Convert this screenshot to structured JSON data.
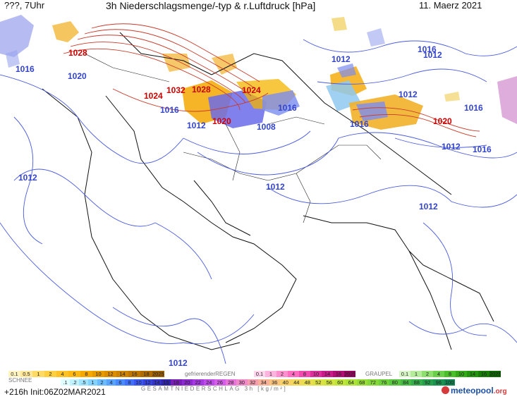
{
  "header": {
    "left": "???, 7Uhr",
    "title": "3h Niederschlagsmenge/-typ & r.Luftdruck [hPa]",
    "date": "11. Maerz 2021"
  },
  "isobars": [
    {
      "text": "1028",
      "color": "#cc0000"
    },
    {
      "text": "1020",
      "color": "#3344cc"
    },
    {
      "text": "1024",
      "color": "#cc0000"
    },
    {
      "text": "1032",
      "color": "#cc0000"
    },
    {
      "text": "1028",
      "color": "#cc0000"
    },
    {
      "text": "1024",
      "color": "#cc0000"
    },
    {
      "text": "1016",
      "color": "#3344cc"
    },
    {
      "text": "1012",
      "color": "#3344cc"
    },
    {
      "text": "1020",
      "color": "#cc0000"
    },
    {
      "text": "1016",
      "color": "#3344cc"
    },
    {
      "text": "1008",
      "color": "#3344cc"
    },
    {
      "text": "1016",
      "color": "#3344cc"
    },
    {
      "text": "1012",
      "color": "#3344cc"
    },
    {
      "text": "1012",
      "color": "#3344cc"
    },
    {
      "text": "1012",
      "color": "#3344cc"
    },
    {
      "text": "1016",
      "color": "#3344cc"
    },
    {
      "text": "1016",
      "color": "#3344cc"
    },
    {
      "text": "1020",
      "color": "#cc0000"
    },
    {
      "text": "1012",
      "color": "#3344cc"
    },
    {
      "text": "1016",
      "color": "#3344cc"
    },
    {
      "text": "1012",
      "color": "#3344cc"
    },
    {
      "text": "1012",
      "color": "#3344cc"
    },
    {
      "text": "1012",
      "color": "#3344cc"
    },
    {
      "text": "1012",
      "color": "#3344cc"
    },
    {
      "text": "1016",
      "color": "#3344cc"
    }
  ],
  "legend": {
    "rain": {
      "values": [
        "0.1",
        "0.5",
        "1",
        "2",
        "4",
        "6",
        "8",
        "10",
        "12",
        "14",
        "16",
        "18",
        "2025+"
      ],
      "colors": [
        "#fff3c0",
        "#ffe799",
        "#ffdb66",
        "#ffcf40",
        "#ffc226",
        "#fdb814",
        "#f5a800",
        "#e89b00",
        "#db8f00",
        "#cc8300",
        "#bd7700",
        "#ad6b00",
        "#9b5f00"
      ]
    },
    "freezing_label": "gefrierenderREGEN",
    "freezing": {
      "values": [
        "0.1",
        "1",
        "2",
        "4",
        "8",
        "10",
        "14",
        "16",
        "2025+"
      ],
      "colors": [
        "#ffd6ee",
        "#ffb3df",
        "#ff8fcf",
        "#ff6cc0",
        "#f04aaf",
        "#dd2f9c",
        "#c81c88",
        "#b10f74",
        "#990660"
      ]
    },
    "graupel_label": "GRAUPEL",
    "graupel": {
      "values": [
        "0.1",
        "1",
        "2",
        "4",
        "8",
        "10",
        "14",
        "16",
        "2025+"
      ],
      "colors": [
        "#d7f5c6",
        "#b5ec9b",
        "#8fdf6f",
        "#6ad04a",
        "#4bbf2b",
        "#34aa18",
        "#23940d",
        "#177d06",
        "#0e6602"
      ]
    },
    "snow_label": "SCHNEE",
    "snow": {
      "values": [
        ".1",
        ".2",
        ".5",
        "1",
        "2",
        "4",
        "6",
        "8",
        "10",
        "12",
        "14",
        "16"
      ],
      "colors": [
        "#e0ffff",
        "#c0f2ff",
        "#a1e4ff",
        "#84d2ff",
        "#6bbcff",
        "#58a3ff",
        "#4a8aff",
        "#4170ff",
        "#3a58f0",
        "#3744dc",
        "#3433c4",
        "#3125a8"
      ]
    },
    "total": {
      "values": [
        "18",
        "20",
        "22",
        "24",
        "26",
        "28",
        "30",
        "32",
        "34",
        "36",
        "40",
        "44",
        "48",
        "52",
        "56",
        "60",
        "64",
        "68",
        "72",
        "76",
        "80",
        "84",
        "88",
        "92",
        "96",
        "100"
      ],
      "colors": [
        "#7a1fb6",
        "#8e2ad0",
        "#a63ae0",
        "#be4ae8",
        "#d45ee8",
        "#e874dc",
        "#f08ac8",
        "#f59eb0",
        "#f8b298",
        "#f9c480",
        "#f7d06a",
        "#f2d85a",
        "#e9de4e",
        "#dde244",
        "#cfe43e",
        "#bfe43a",
        "#ade238",
        "#99de38",
        "#85d83a",
        "#6fd03e",
        "#5ac642",
        "#47bb46",
        "#36ae4a",
        "#27a04e",
        "#1c9250",
        "#128452"
      ]
    },
    "total_label": "GESAMTNIEDERSCHLAG  3h  [kg/m²]"
  },
  "footer": {
    "run": "+216h Init:06Z02MAR2021",
    "brand": "meteopool",
    "brand_tld": ".org"
  }
}
